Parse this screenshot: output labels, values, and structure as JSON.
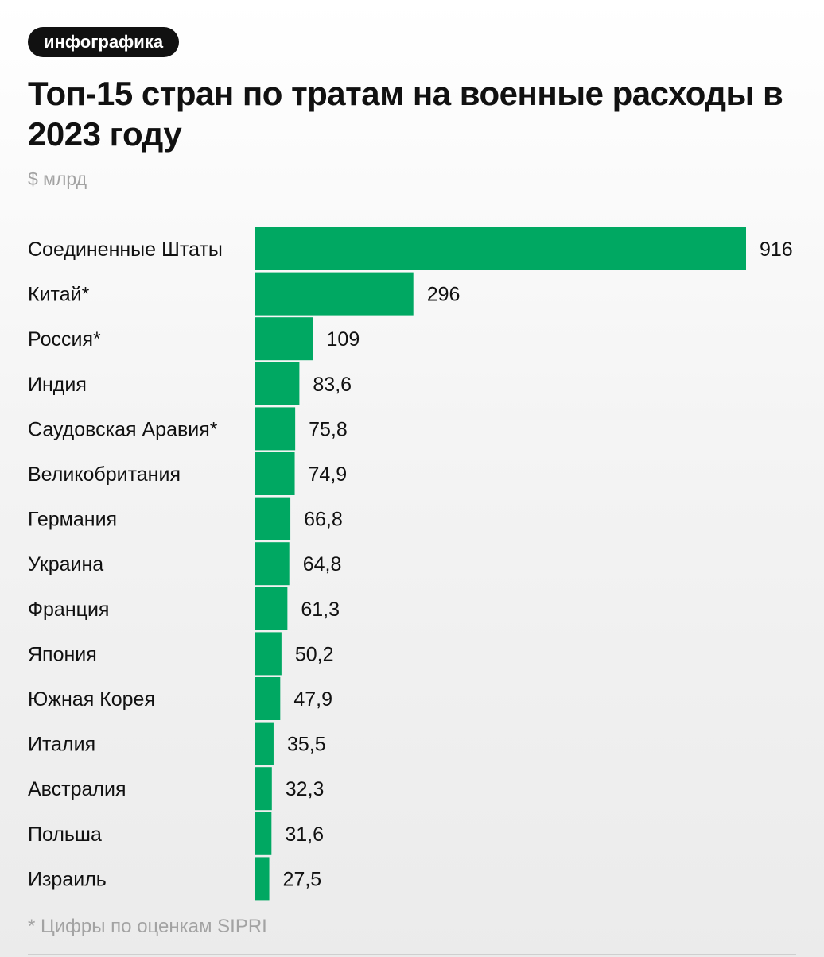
{
  "badge": "инфографика",
  "chart_data": {
    "type": "bar",
    "orientation": "horizontal",
    "title": "Топ-15 стран по тратам на военные расходы в 2023 году",
    "unit": "$ млрд",
    "categories": [
      "Соединенные Штаты",
      "Китай*",
      "Россия*",
      "Индия",
      "Саудовская Аравия*",
      "Великобритания",
      "Германия",
      "Украина",
      "Франция",
      "Япония",
      "Южная Корея",
      "Италия",
      "Австралия",
      "Польша",
      "Израиль"
    ],
    "values": [
      916,
      296,
      109,
      83.6,
      75.8,
      74.9,
      66.8,
      64.8,
      61.3,
      50.2,
      47.9,
      35.5,
      32.3,
      31.6,
      27.5
    ],
    "value_labels": [
      "916",
      "296",
      "109",
      "83,6",
      "75,8",
      "74,9",
      "66,8",
      "64,8",
      "61,3",
      "50,2",
      "47,9",
      "35,5",
      "32,3",
      "31,6",
      "27,5"
    ],
    "xlim": [
      0,
      916
    ],
    "bar_color": "#00a862",
    "grid": false,
    "legend": "none"
  },
  "footnote": "* Цифры по оценкам SIPRI"
}
